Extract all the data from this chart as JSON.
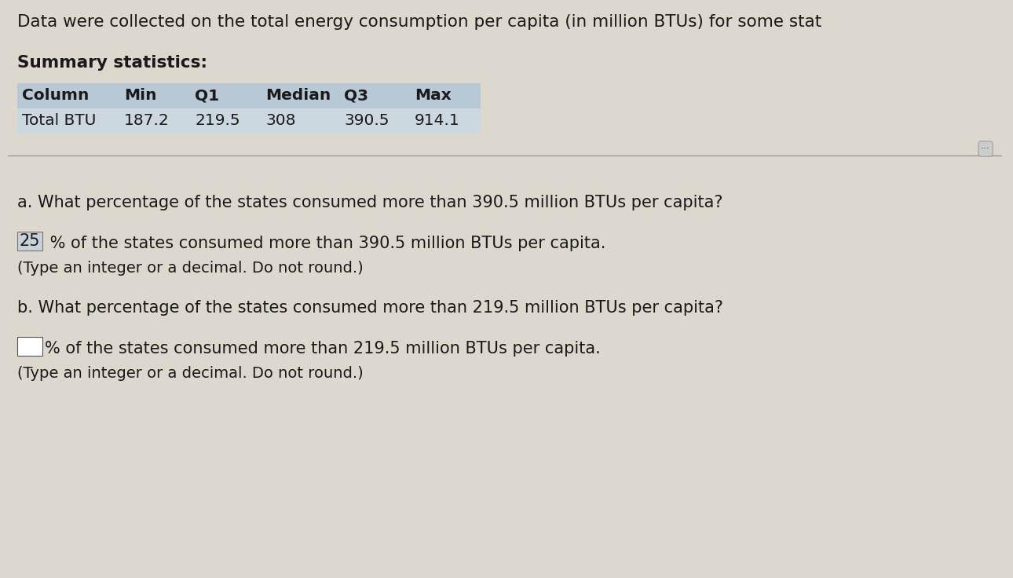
{
  "background_color": "#ddd8ce",
  "title_text": "Data were collected on the total energy consumption per capita (in million BTUs) for some stat",
  "summary_label": "Summary statistics:",
  "table_headers": [
    "Column",
    "Min",
    "Q1",
    "Median",
    "Q3",
    "Max"
  ],
  "table_row": [
    "Total BTU",
    "187.2",
    "219.5",
    "308",
    "390.5",
    "914.1"
  ],
  "header_bg": "#b8c8d4",
  "row_bg": "#ccd8e0",
  "question_a": "a. What percentage of the states consumed more than 390.5 million BTUs per capita?",
  "answer_a_box": "25",
  "answer_a_text": " % of the states consumed more than 390.5 million BTUs per capita.",
  "answer_a_note": "(Type an integer or a decimal. Do not round.)",
  "question_b": "b. What percentage of the states consumed more than 219.5 million BTUs per capita?",
  "answer_b_text": "% of the states consumed more than 219.5 million BTUs per capita.",
  "answer_b_note": "(Type an integer or a decimal. Do not round.)",
  "divider_color": "#999999",
  "text_color": "#1a1a1a",
  "font_size_title": 15.5,
  "font_size_summary": 15.5,
  "font_size_body": 15,
  "font_size_table": 14.5
}
